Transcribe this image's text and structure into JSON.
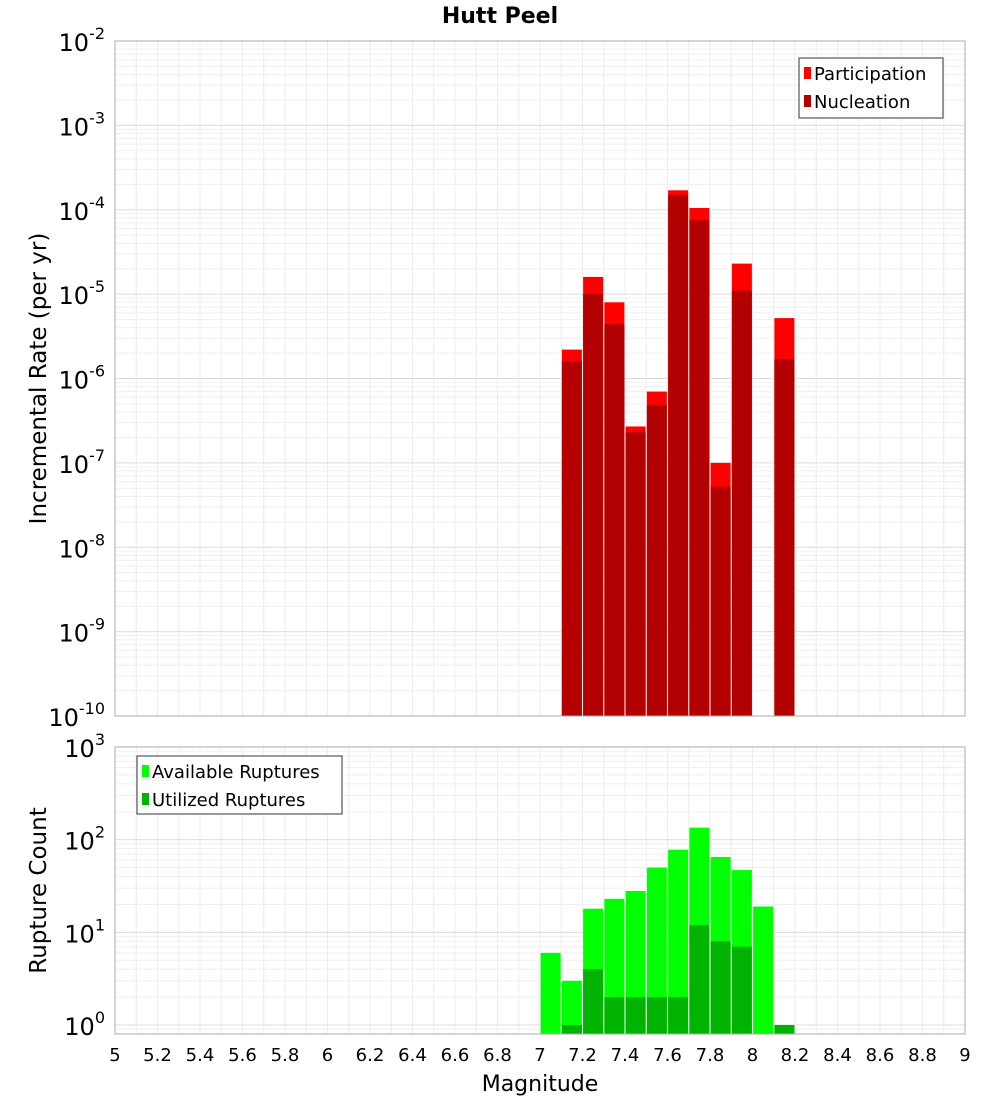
{
  "title": "Hutt Peel",
  "xlabel": "Magnitude",
  "x_ticks": [
    "5",
    "5.2",
    "5.4",
    "5.6",
    "5.8",
    "6",
    "6.2",
    "6.4",
    "6.6",
    "6.8",
    "7",
    "7.2",
    "7.4",
    "7.6",
    "7.8",
    "8",
    "8.2",
    "8.4",
    "8.6",
    "8.8",
    "9"
  ],
  "colors": {
    "participation": "#ff0000",
    "nucleation": "#b30000",
    "available": "#00ff00",
    "utilized": "#00b300"
  },
  "chart_data": [
    {
      "type": "bar",
      "title": "Hutt Peel",
      "xlabel": "Magnitude",
      "ylabel": "Incremental Rate (per yr)",
      "xlim": [
        5,
        9
      ],
      "ylim": [
        1e-10,
        0.01
      ],
      "yscale": "log",
      "y_ticks": [
        {
          "base": "10",
          "exp": "-2"
        },
        {
          "base": "10",
          "exp": "-3"
        },
        {
          "base": "10",
          "exp": "-4"
        },
        {
          "base": "10",
          "exp": "-5"
        },
        {
          "base": "10",
          "exp": "-6"
        },
        {
          "base": "10",
          "exp": "-7"
        },
        {
          "base": "10",
          "exp": "-8"
        },
        {
          "base": "10",
          "exp": "-9"
        },
        {
          "base": "10",
          "exp": "-10"
        }
      ],
      "legend": "top-right",
      "x": [
        7.15,
        7.25,
        7.35,
        7.45,
        7.55,
        7.65,
        7.75,
        7.85,
        7.95,
        8.15
      ],
      "series": [
        {
          "name": "Participation",
          "values": [
            2.2e-06,
            1.6e-05,
            8e-06,
            2.7e-07,
            7e-07,
            0.00017,
            0.000105,
            1e-07,
            2.3e-05,
            5.2e-06
          ]
        },
        {
          "name": "Nucleation",
          "values": [
            1.6e-06,
            1e-05,
            4.4e-06,
            2.3e-07,
            4.8e-07,
            0.00015,
            7.5e-05,
            5.2e-08,
            1.1e-05,
            1.7e-06
          ]
        }
      ]
    },
    {
      "type": "bar",
      "xlabel": "Magnitude",
      "ylabel": "Rupture Count",
      "xlim": [
        5,
        9
      ],
      "ylim": [
        0.8,
        1000
      ],
      "yscale": "log",
      "y_ticks": [
        {
          "base": "10",
          "exp": "3"
        },
        {
          "base": "10",
          "exp": "2"
        },
        {
          "base": "10",
          "exp": "1"
        },
        {
          "base": "10",
          "exp": "0"
        }
      ],
      "legend": "top-left",
      "x": [
        7.05,
        7.15,
        7.25,
        7.35,
        7.45,
        7.55,
        7.65,
        7.75,
        7.85,
        7.95,
        8.05,
        8.15
      ],
      "series": [
        {
          "name": "Available Ruptures",
          "values": [
            6,
            3,
            18,
            23,
            28,
            50,
            78,
            135,
            65,
            47,
            19,
            1
          ]
        },
        {
          "name": "Utilized Ruptures",
          "values": [
            0,
            1,
            4,
            2,
            2,
            2,
            2,
            12,
            8,
            7,
            0,
            1
          ]
        }
      ]
    }
  ]
}
